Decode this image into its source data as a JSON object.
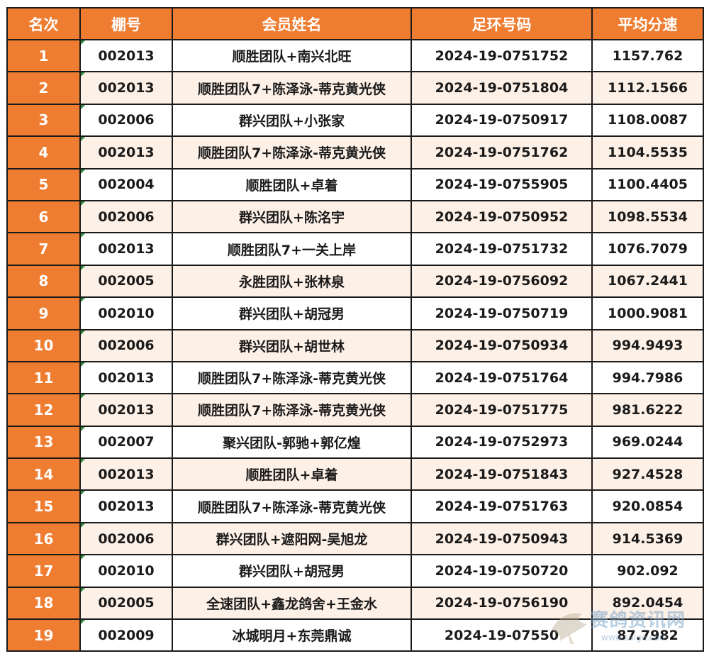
{
  "table": {
    "headers": [
      "名次",
      "棚号",
      "会员姓名",
      "足环号码",
      "平均分速"
    ],
    "rows": [
      [
        "1",
        "002013",
        "顺胜团队+南兴北旺",
        "2024-19-0751752",
        "1157.762"
      ],
      [
        "2",
        "002013",
        "顺胜团队7+陈泽泳-蒂克黄光侠",
        "2024-19-0751804",
        "1112.1566"
      ],
      [
        "3",
        "002006",
        "群兴团队+小张家",
        "2024-19-0750917",
        "1108.0087"
      ],
      [
        "4",
        "002013",
        "顺胜团队7+陈泽泳-蒂克黄光侠",
        "2024-19-0751762",
        "1104.5535"
      ],
      [
        "5",
        "002004",
        "顺胜团队+卓着",
        "2024-19-0755905",
        "1100.4405"
      ],
      [
        "6",
        "002006",
        "群兴团队+陈洺宇",
        "2024-19-0750952",
        "1098.5534"
      ],
      [
        "7",
        "002013",
        "顺胜团队7+一关上岸",
        "2024-19-0751732",
        "1076.7079"
      ],
      [
        "8",
        "002005",
        "永胜团队+张林泉",
        "2024-19-0756092",
        "1067.2441"
      ],
      [
        "9",
        "002010",
        "群兴团队+胡冠男",
        "2024-19-0750719",
        "1000.9081"
      ],
      [
        "10",
        "002006",
        "群兴团队+胡世林",
        "2024-19-0750934",
        "994.9493"
      ],
      [
        "11",
        "002013",
        "顺胜团队7+陈泽泳-蒂克黄光侠",
        "2024-19-0751764",
        "994.7986"
      ],
      [
        "12",
        "002013",
        "顺胜团队7+陈泽泳-蒂克黄光侠",
        "2024-19-0751775",
        "981.6222"
      ],
      [
        "13",
        "002007",
        "聚兴团队-郭驰+郭亿煌",
        "2024-19-0752973",
        "969.0244"
      ],
      [
        "14",
        "002013",
        "顺胜团队+卓着",
        "2024-19-0751843",
        "927.4528"
      ],
      [
        "15",
        "002013",
        "顺胜团队7+陈泽泳-蒂克黄光侠",
        "2024-19-0751763",
        "920.0854"
      ],
      [
        "16",
        "002006",
        "群兴团队+遮阳网-吴旭龙",
        "2024-19-0750943",
        "914.5369"
      ],
      [
        "17",
        "002010",
        "群兴团队+胡冠男",
        "2024-19-0750720",
        "902.092"
      ],
      [
        "18",
        "002005",
        "全速团队+鑫龙鸽舍+王金水",
        "2024-19-0756190",
        "892.0454"
      ],
      [
        "19",
        "002009",
        "冰城明月+东莞鼎诚",
        "2024-19-07550",
        "87.7982"
      ]
    ]
  },
  "watermark": {
    "text": "赛鸽资讯网",
    "url": "www.saige.com"
  }
}
